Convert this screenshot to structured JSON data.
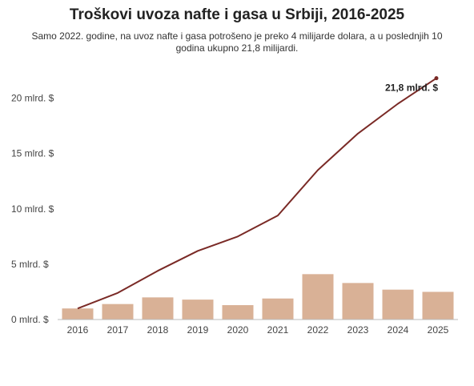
{
  "chart_data": {
    "type": "bar+line",
    "title": "Troškovi uvoza nafte i gasa u Srbiji, 2016-2025",
    "subtitle": "Samo 2022. godine, na uvoz nafte i gasa potrošeno je preko 4 milijarde dolara, a u poslednjih 10 godina ukupno 21,8 milijardi.",
    "categories": [
      "2016",
      "2017",
      "2018",
      "2019",
      "2020",
      "2021",
      "2022",
      "2023",
      "2024",
      "2025"
    ],
    "series": [
      {
        "type": "bar",
        "values": [
          1.0,
          1.4,
          2.0,
          1.8,
          1.3,
          1.9,
          4.1,
          3.3,
          2.7,
          2.5
        ],
        "color": "#d9b196"
      },
      {
        "type": "line",
        "values": [
          1.0,
          2.4,
          4.4,
          6.2,
          7.5,
          9.4,
          13.5,
          16.8,
          19.5,
          21.8
        ],
        "color": "#7a2a26"
      }
    ],
    "yticks": [
      "0 mlrd. $",
      "5 mlrd. $",
      "10 mlrd. $",
      "15 mlrd. $",
      "20 mlrd. $"
    ],
    "ytick_values": [
      0,
      5,
      10,
      15,
      20
    ],
    "ylim": [
      0,
      22.5
    ],
    "annotation": "21,8 mlrd. $",
    "grid": false,
    "legend": "none"
  }
}
